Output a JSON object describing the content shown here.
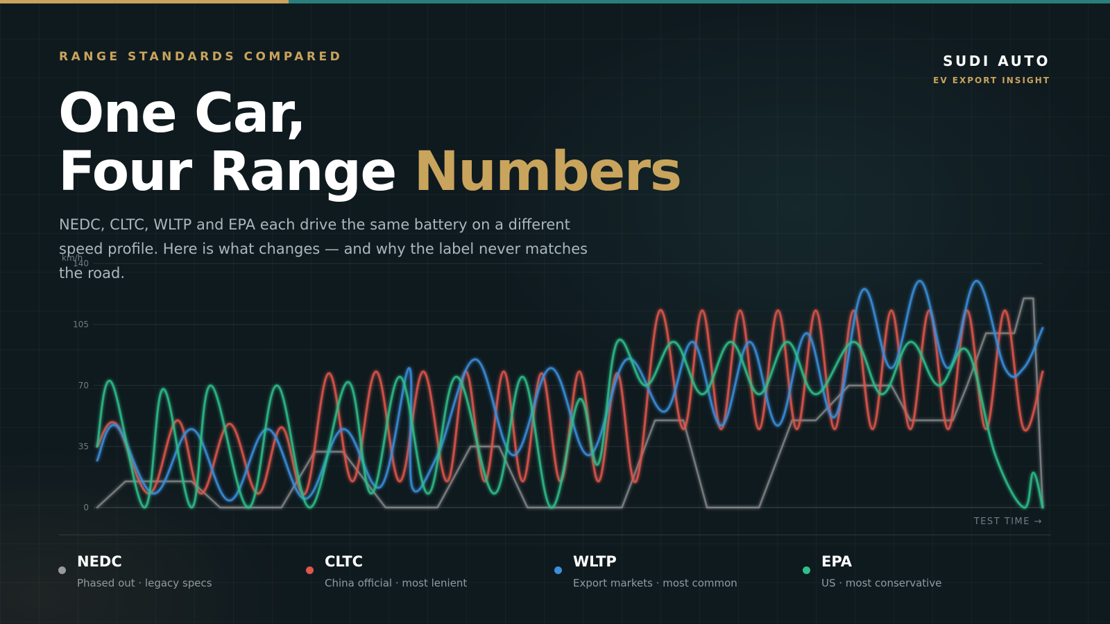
{
  "eyebrow": "RANGE STANDARDS COMPARED",
  "headline": {
    "line1": "One Car,",
    "line2_white": "Four Range ",
    "line2_accent": "Numbers"
  },
  "subtitle": "NEDC, CLTC, WLTP and EPA each drive the same battery on a different speed profile. Here is what changes — and why the label never matches the road.",
  "brand": {
    "name": "SUDI AUTO",
    "tagline": "EV EXPORT INSIGHT"
  },
  "colors": {
    "accent_gold": "#c9a45c",
    "accent_teal": "#2a7f7c",
    "nedc": "#9a9a9a",
    "cltc": "#e0574b",
    "wltp": "#3b8fdc",
    "epa": "#2fbf8a"
  },
  "chart_data": {
    "type": "line",
    "title": "",
    "xlabel": "TEST TIME →",
    "ylabel": "km/h",
    "ylim": [
      0,
      140
    ],
    "xlim": [
      0,
      100
    ],
    "yticks": [
      0,
      35,
      70,
      105,
      140
    ],
    "grid": true,
    "legend_position": "bottom",
    "series": [
      {
        "name": "NEDC",
        "description": "Phased out · legacy specs",
        "color": "#9a9a9a",
        "x": [
          0,
          3,
          7,
          10,
          13,
          16.5,
          19.5,
          23,
          25,
          26,
          30.5,
          32,
          33,
          36,
          39.5,
          41,
          42.5,
          45.5,
          52,
          55.5,
          59,
          60.5,
          62,
          64.5,
          66,
          69,
          70,
          73.5,
          76,
          79.5,
          84,
          86,
          88,
          90.5,
          92,
          94,
          95.5,
          97,
          98,
          99,
          100
        ],
        "y": [
          0,
          15,
          15,
          15,
          0,
          0,
          0,
          32,
          32,
          32,
          0,
          0,
          0,
          0,
          35,
          35,
          35,
          0,
          0,
          0,
          50,
          50,
          50,
          0,
          0,
          0,
          0,
          50,
          50,
          70,
          70,
          50,
          50,
          50,
          70,
          100,
          100,
          100,
          120,
          120,
          0
        ]
      },
      {
        "name": "CLTC",
        "description": "China official · most lenient",
        "color": "#e0574b",
        "x": [
          0,
          2,
          5.5,
          8.5,
          11,
          14,
          17,
          19.5,
          22,
          24.5,
          27,
          29.5,
          32,
          34.5,
          37,
          39,
          41,
          43,
          45,
          47,
          49,
          51,
          53,
          55,
          57,
          59.5,
          62,
          64,
          66,
          68,
          70,
          72,
          74,
          76,
          78,
          80,
          82,
          84,
          86,
          88,
          90,
          92,
          94,
          96,
          98,
          100
        ],
        "y": [
          35,
          48,
          8,
          50,
          8,
          48,
          8,
          46,
          8,
          77,
          15,
          78,
          15,
          78,
          15,
          78,
          15,
          78,
          15,
          77,
          15,
          78,
          15,
          77,
          15,
          113,
          45,
          113,
          45,
          113,
          45,
          113,
          45,
          113,
          45,
          113,
          45,
          113,
          45,
          113,
          45,
          113,
          45,
          113,
          45,
          78
        ]
      },
      {
        "name": "WLTP",
        "description": "Export markets · most common",
        "color": "#3b8fdc",
        "x": [
          0,
          2,
          6,
          10,
          14,
          18,
          22,
          26,
          30,
          33,
          33.3,
          36,
          40,
          44,
          48,
          52,
          56,
          60,
          63,
          66,
          69,
          72,
          75,
          78,
          81,
          84,
          87,
          90,
          93,
          96,
          98,
          100
        ],
        "y": [
          27,
          47,
          8,
          45,
          4,
          45,
          5,
          45,
          12,
          80,
          12,
          30,
          85,
          30,
          80,
          30,
          85,
          55,
          95,
          47,
          95,
          47,
          100,
          52,
          125,
          80,
          130,
          80,
          130,
          80,
          80,
          103
        ]
      },
      {
        "name": "EPA",
        "description": "US · most conservative",
        "color": "#2fbf8a",
        "x": [
          0,
          1.5,
          5,
          7,
          10,
          12,
          16,
          19,
          22.5,
          26.5,
          29,
          32,
          35,
          38,
          42,
          45,
          48,
          51,
          53,
          55,
          58,
          61,
          64,
          67,
          70,
          73,
          76,
          80,
          83,
          86,
          89,
          92,
          95,
          98,
          99,
          100
        ],
        "y": [
          35,
          72,
          0,
          68,
          0,
          70,
          0,
          70,
          0,
          72,
          8,
          75,
          8,
          75,
          8,
          75,
          0,
          62,
          25,
          95,
          70,
          95,
          65,
          95,
          65,
          95,
          65,
          95,
          65,
          95,
          70,
          90,
          30,
          0,
          20,
          0
        ]
      }
    ]
  }
}
